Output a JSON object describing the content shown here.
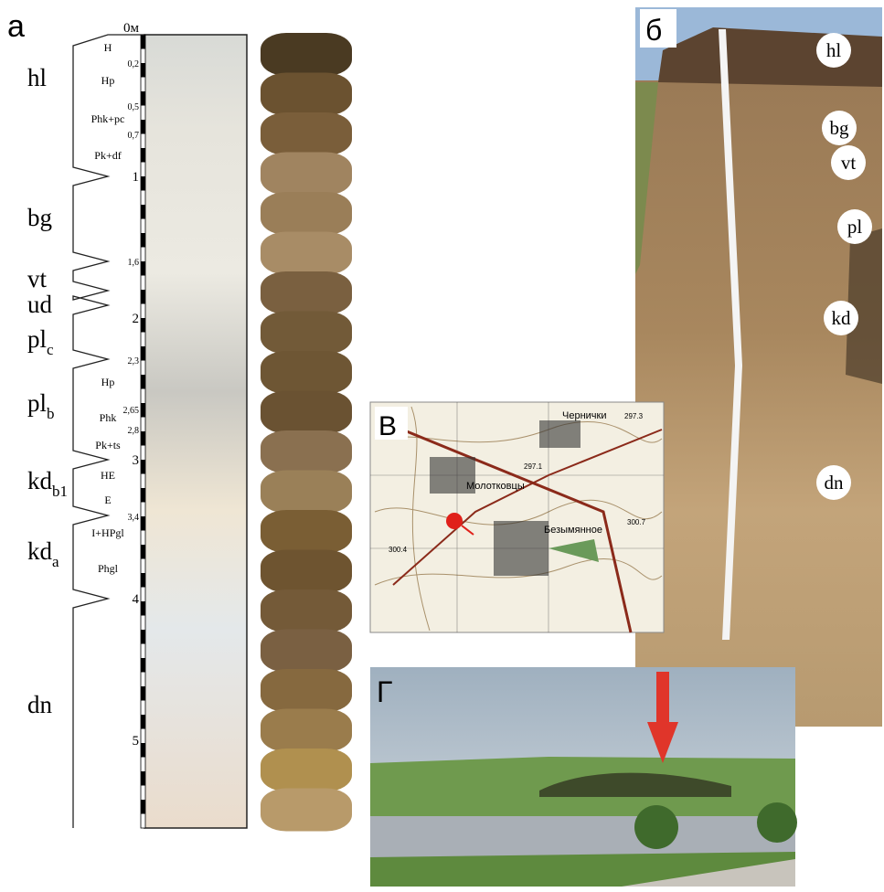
{
  "panels": {
    "a": "а",
    "b": "б",
    "v": "В",
    "g": "Г"
  },
  "depth_scale": [
    "0м",
    "0,2",
    "0,5",
    "0,7",
    "1",
    "1,6",
    "2",
    "2,3",
    "2,65",
    "2,8",
    "3",
    "3,4",
    "4",
    "5"
  ],
  "horizons": [
    {
      "base": "hl"
    },
    {
      "base": "bg"
    },
    {
      "base": "vt"
    },
    {
      "base": "ud"
    },
    {
      "base": "pl",
      "sub": "c"
    },
    {
      "base": "pl",
      "sub": "b"
    },
    {
      "base": "kd",
      "sub": "b1"
    },
    {
      "base": "kd",
      "sub": "a"
    },
    {
      "base": "dn"
    }
  ],
  "subhorizons": [
    "H",
    "Hp",
    "Phk+pc",
    "Pk+df",
    "Hp",
    "Phk",
    "Pk+ts",
    "HE",
    "E",
    "I+HPgl",
    "Phgl"
  ],
  "photo_labels": [
    "hl",
    "bg",
    "vt",
    "pl",
    "kd",
    "dn"
  ],
  "map_labels": [
    "Чернички",
    "Молотковцы",
    "Безымянное",
    "297.3",
    "297.1",
    "300.7",
    "300.4"
  ]
}
